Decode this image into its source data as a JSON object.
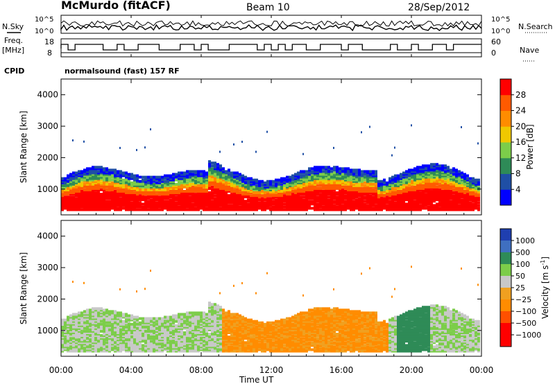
{
  "header": {
    "station": "McMurdo (fitACF)",
    "beam": "Beam 10",
    "date": "28/Sep/2012"
  },
  "top_panel": {
    "left_label": "N.Sky",
    "left_ticks": [
      "10^5",
      "10^0"
    ],
    "right_ticks": [
      "10^5",
      "10^0"
    ],
    "right_label": "N.Search"
  },
  "freq_panel": {
    "left_label_line1": "Freq.",
    "left_label_line2": "[MHz]",
    "left_ticks": [
      "18",
      "8"
    ],
    "right_ticks": [
      "60",
      "0"
    ],
    "right_label": "Nave"
  },
  "cpid": {
    "label": "CPID",
    "value": "normalsound (fast) 157 RF"
  },
  "colors": {
    "power_scale": [
      "#0000ff",
      "#1f4fa5",
      "#2e8b57",
      "#7ccd4a",
      "#f0c800",
      "#ff8c00",
      "#ff5a00",
      "#ff0000"
    ],
    "velocity_scale": [
      "#1f3fb0",
      "#3f6fc0",
      "#2e8b57",
      "#7ccd4a",
      "#c8c8c8",
      "#f0a020",
      "#ff8c00",
      "#ff5000",
      "#ff0000"
    ]
  },
  "chart_data": [
    {
      "type": "heatmap",
      "title": "",
      "xlabel": "Time UT",
      "ylabel": "Slant Range [km]",
      "y_ticks": [
        "1000",
        "2000",
        "3000",
        "4000"
      ],
      "x_ticks": [
        "00:00",
        "04:00",
        "08:00",
        "12:00",
        "16:00",
        "20:00",
        "00:00"
      ],
      "xlim": [
        "00:00",
        "24:00"
      ],
      "ylim": [
        180,
        4500
      ],
      "colorbar_label": "Power [dB]",
      "colorbar_ticks": [
        "4",
        "8",
        "12",
        "16",
        "20",
        "24",
        "28"
      ],
      "description_bands": [
        {
          "range": [
            180,
            1000
          ],
          "value": "28+"
        },
        {
          "range": [
            1000,
            1400
          ],
          "value": "12-24"
        },
        {
          "range": [
            1400,
            1700
          ],
          "value": "4-8"
        }
      ]
    },
    {
      "type": "heatmap",
      "title": "",
      "xlabel": "Time UT",
      "ylabel": "Slant Range [km]",
      "y_ticks": [
        "1000",
        "2000",
        "3000",
        "4000"
      ],
      "x_ticks": [
        "00:00",
        "04:00",
        "08:00",
        "12:00",
        "16:00",
        "20:00",
        "00:00"
      ],
      "xlim": [
        "00:00",
        "24:00"
      ],
      "ylim": [
        180,
        4500
      ],
      "colorbar_label": "Velocity [m s",
      "colorbar_label_sup": "-1",
      "colorbar_label_end": "]",
      "colorbar_ticks": [
        "1000",
        "500",
        "100",
        "50",
        "25",
        "−25",
        "−100",
        "−500",
        "−1000"
      ]
    }
  ]
}
